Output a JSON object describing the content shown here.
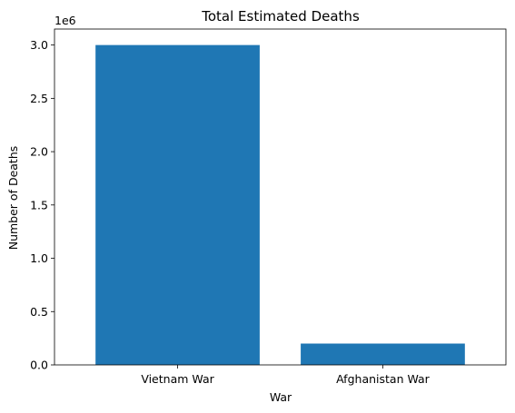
{
  "chart_data": {
    "type": "bar",
    "title": "Total Estimated Deaths",
    "xlabel": "War",
    "ylabel": "Number of Deaths",
    "scale_label": "1e6",
    "categories": [
      "Vietnam War",
      "Afghanistan War"
    ],
    "values": [
      3000000,
      200000
    ],
    "ylim": [
      0,
      3150000
    ],
    "yticks": [
      0,
      500000,
      1000000,
      1500000,
      2000000,
      2500000,
      3000000
    ],
    "ytick_labels": [
      "0.0",
      "0.5",
      "1.0",
      "1.5",
      "2.0",
      "2.5",
      "3.0"
    ],
    "grid": false,
    "bar_color": "#1f77b4"
  }
}
